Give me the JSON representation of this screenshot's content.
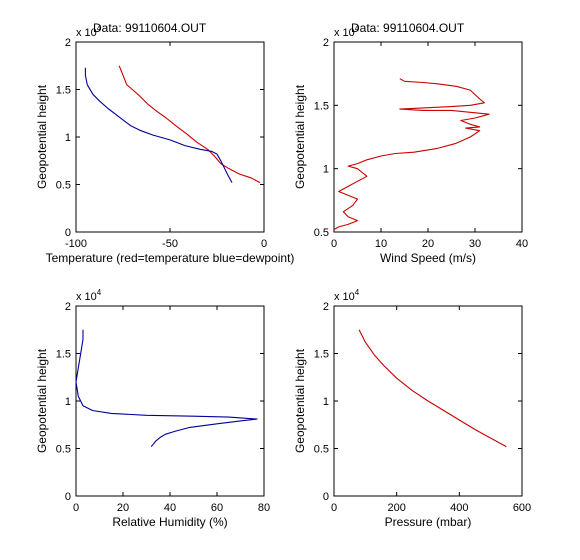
{
  "chart_data": [
    {
      "type": "line",
      "title": "Data: 99110604.OUT",
      "xlabel": "Temperature (red=temperature blue=dewpoint)",
      "ylabel": "Geopotential height",
      "y_multiplier": "x 10",
      "y_multiplier_exp": "4",
      "xlim": [
        -100,
        0
      ],
      "ylim": [
        0,
        2
      ],
      "xticks": [
        "-100",
        "-50",
        "0"
      ],
      "yticks": [
        "0",
        "0.5",
        "1",
        "1.5",
        "2"
      ],
      "series": [
        {
          "color": "#cc0000",
          "points": [
            [
              -77,
              1.75
            ],
            [
              -76,
              1.7
            ],
            [
              -75,
              1.65
            ],
            [
              -73,
              1.55
            ],
            [
              -70,
              1.5
            ],
            [
              -66,
              1.43
            ],
            [
              -62,
              1.35
            ],
            [
              -57,
              1.27
            ],
            [
              -52,
              1.2
            ],
            [
              -47,
              1.12
            ],
            [
              -41,
              1.03
            ],
            [
              -36,
              0.95
            ],
            [
              -30,
              0.87
            ],
            [
              -26,
              0.79
            ],
            [
              -23,
              0.72
            ],
            [
              -19,
              0.67
            ],
            [
              -13,
              0.61
            ],
            [
              -7,
              0.57
            ],
            [
              -4,
              0.54
            ],
            [
              -2,
              0.52
            ]
          ]
        },
        {
          "color": "#000099",
          "points": [
            [
              -95,
              1.73
            ],
            [
              -95,
              1.65
            ],
            [
              -94,
              1.55
            ],
            [
              -91,
              1.45
            ],
            [
              -87,
              1.37
            ],
            [
              -83,
              1.3
            ],
            [
              -79,
              1.24
            ],
            [
              -75,
              1.18
            ],
            [
              -71,
              1.12
            ],
            [
              -66,
              1.07
            ],
            [
              -59,
              1.02
            ],
            [
              -50,
              0.97
            ],
            [
              -42,
              0.91
            ],
            [
              -34,
              0.87
            ],
            [
              -28,
              0.85
            ],
            [
              -25,
              0.82
            ],
            [
              -23,
              0.75
            ],
            [
              -21,
              0.67
            ],
            [
              -19,
              0.59
            ],
            [
              -17,
              0.52
            ]
          ]
        }
      ]
    },
    {
      "type": "line",
      "title": "Data: 99110604.OUT",
      "xlabel": "Wind Speed (m/s)",
      "ylabel": "Geopotential height",
      "y_multiplier": "x 10",
      "y_multiplier_exp": "4",
      "xlim": [
        0,
        40
      ],
      "ylim": [
        0.5,
        2
      ],
      "xticks": [
        "0",
        "10",
        "20",
        "30",
        "40"
      ],
      "yticks": [
        "0.5",
        "1",
        "1.5",
        "2"
      ],
      "series": [
        {
          "color": "#cc0000",
          "points": [
            [
              14,
              1.71
            ],
            [
              15,
              1.69
            ],
            [
              19,
              1.68
            ],
            [
              22,
              1.67
            ],
            [
              26,
              1.65
            ],
            [
              29,
              1.62
            ],
            [
              31,
              1.55
            ],
            [
              32,
              1.52
            ],
            [
              29,
              1.5
            ],
            [
              25,
              1.49
            ],
            [
              19,
              1.48
            ],
            [
              14,
              1.47
            ],
            [
              19,
              1.46
            ],
            [
              25,
              1.46
            ],
            [
              33,
              1.43
            ],
            [
              30,
              1.4
            ],
            [
              27,
              1.38
            ],
            [
              29,
              1.35
            ],
            [
              31,
              1.33
            ],
            [
              28,
              1.32
            ],
            [
              31,
              1.3
            ],
            [
              29,
              1.25
            ],
            [
              26,
              1.2
            ],
            [
              22,
              1.16
            ],
            [
              17,
              1.13
            ],
            [
              13,
              1.12
            ],
            [
              10,
              1.1
            ],
            [
              7,
              1.07
            ],
            [
              5,
              1.04
            ],
            [
              3,
              1.02
            ],
            [
              5,
              1.0
            ],
            [
              6,
              0.97
            ],
            [
              7,
              0.94
            ],
            [
              5,
              0.9
            ],
            [
              3,
              0.86
            ],
            [
              1,
              0.82
            ],
            [
              3,
              0.79
            ],
            [
              5,
              0.76
            ],
            [
              4,
              0.71
            ],
            [
              2,
              0.66
            ],
            [
              3,
              0.62
            ],
            [
              5,
              0.59
            ],
            [
              3,
              0.56
            ],
            [
              1,
              0.54
            ],
            [
              0,
              0.52
            ]
          ]
        }
      ]
    },
    {
      "type": "line",
      "title": "",
      "xlabel": "Relative Humidity (%)",
      "ylabel": "Geopotential height",
      "y_multiplier": "x 10",
      "y_multiplier_exp": "4",
      "xlim": [
        0,
        80
      ],
      "ylim": [
        0,
        2
      ],
      "xticks": [
        "0",
        "20",
        "40",
        "60",
        "80"
      ],
      "yticks": [
        "0",
        "0.5",
        "1",
        "1.5",
        "2"
      ],
      "series": [
        {
          "color": "#000099",
          "points": [
            [
              3,
              1.75
            ],
            [
              3,
              1.65
            ],
            [
              2,
              1.5
            ],
            [
              1,
              1.35
            ],
            [
              0,
              1.2
            ],
            [
              1,
              1.05
            ],
            [
              3,
              0.95
            ],
            [
              7,
              0.9
            ],
            [
              15,
              0.87
            ],
            [
              30,
              0.85
            ],
            [
              50,
              0.84
            ],
            [
              65,
              0.83
            ],
            [
              77,
              0.81
            ],
            [
              70,
              0.79
            ],
            [
              60,
              0.76
            ],
            [
              48,
              0.72
            ],
            [
              42,
              0.68
            ],
            [
              38,
              0.65
            ],
            [
              36,
              0.62
            ],
            [
              34,
              0.58
            ],
            [
              33,
              0.55
            ],
            [
              32,
              0.52
            ]
          ]
        }
      ]
    },
    {
      "type": "line",
      "title": "",
      "xlabel": "Pressure (mbar)",
      "ylabel": "Geopotential height",
      "y_multiplier": "x 10",
      "y_multiplier_exp": "4",
      "xlim": [
        0,
        600
      ],
      "ylim": [
        0,
        2
      ],
      "xticks": [
        "0",
        "200",
        "400",
        "600"
      ],
      "yticks": [
        "0",
        "0.5",
        "1",
        "1.5",
        "2"
      ],
      "series": [
        {
          "color": "#cc0000",
          "points": [
            [
              80,
              1.75
            ],
            [
              100,
              1.62
            ],
            [
              130,
              1.48
            ],
            [
              160,
              1.37
            ],
            [
              200,
              1.24
            ],
            [
              250,
              1.11
            ],
            [
              300,
              1.0
            ],
            [
              350,
              0.9
            ],
            [
              400,
              0.8
            ],
            [
              450,
              0.7
            ],
            [
              500,
              0.61
            ],
            [
              550,
              0.52
            ]
          ]
        }
      ]
    }
  ]
}
